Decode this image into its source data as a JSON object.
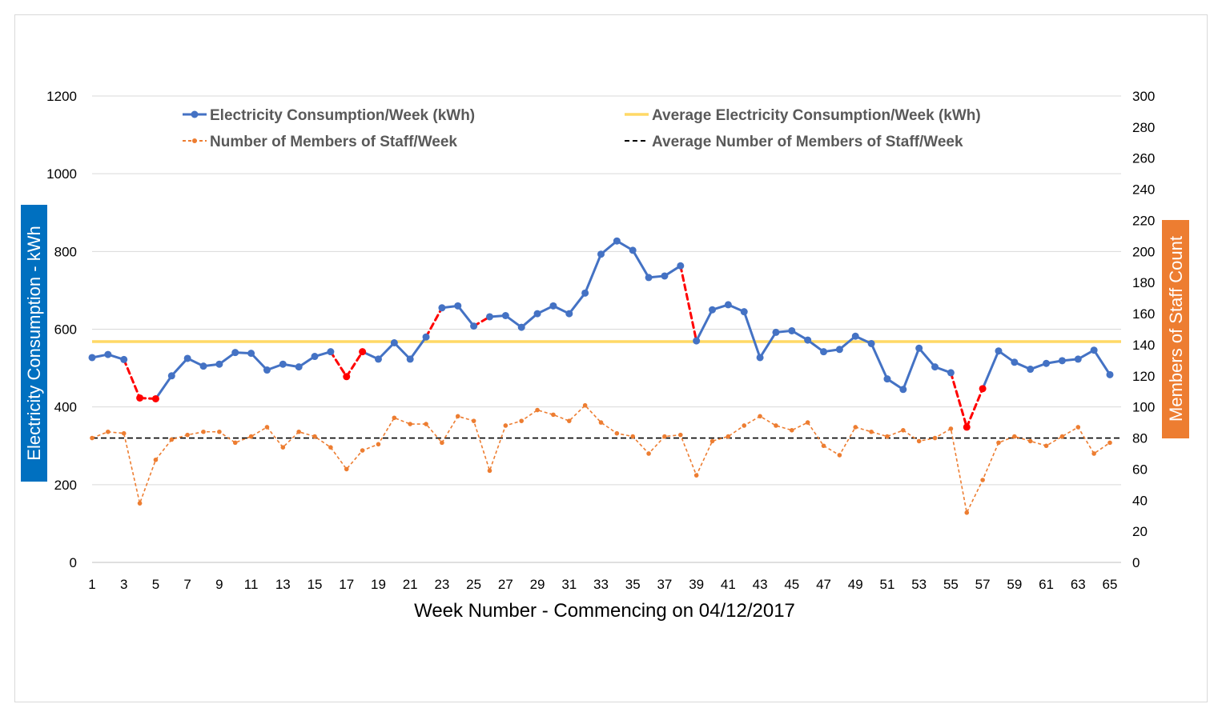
{
  "chart_data": {
    "type": "line",
    "title": "",
    "xlabel": "Week Number - Commencing on 04/12/2017",
    "ylabel_left": "Electricity Consumption - kWh",
    "ylabel_right": "Members of Staff Count",
    "ylim_left": [
      0,
      1200
    ],
    "ylim_right": [
      0,
      300
    ],
    "y_ticks_left": [
      0,
      200,
      400,
      600,
      800,
      1000,
      1200
    ],
    "y_ticks_right": [
      0,
      20,
      40,
      60,
      80,
      100,
      120,
      140,
      160,
      180,
      200,
      220,
      240,
      260,
      280,
      300
    ],
    "x": [
      1,
      2,
      3,
      4,
      5,
      6,
      7,
      8,
      9,
      10,
      11,
      12,
      13,
      14,
      15,
      16,
      17,
      18,
      19,
      20,
      21,
      22,
      23,
      24,
      25,
      26,
      27,
      28,
      29,
      30,
      31,
      32,
      33,
      34,
      35,
      36,
      37,
      38,
      39,
      40,
      41,
      42,
      43,
      44,
      45,
      46,
      47,
      48,
      49,
      50,
      51,
      52,
      53,
      54,
      55,
      56,
      57,
      58,
      59,
      60,
      61,
      62,
      63,
      64,
      65
    ],
    "x_tick_labels": [
      1,
      3,
      5,
      7,
      9,
      11,
      13,
      15,
      17,
      19,
      21,
      23,
      25,
      27,
      29,
      31,
      33,
      35,
      37,
      39,
      41,
      43,
      45,
      47,
      49,
      51,
      53,
      55,
      57,
      59,
      61,
      63,
      65
    ],
    "gridlines": true,
    "legend_position": "top",
    "series": [
      {
        "name": "Electricity Consumption/Week (kWh)",
        "axis": "left",
        "color": "#4472c4",
        "style": "solid-markers",
        "highlight_color": "#ff0000",
        "highlight_segments": [
          [
            3,
            4
          ],
          [
            4,
            5
          ],
          [
            16,
            17
          ],
          [
            17,
            18
          ],
          [
            22,
            23
          ],
          [
            25,
            26
          ],
          [
            38,
            39
          ],
          [
            55,
            56
          ],
          [
            56,
            57
          ]
        ],
        "values": [
          527,
          535,
          522,
          423,
          421,
          480,
          525,
          505,
          510,
          540,
          538,
          495,
          510,
          503,
          530,
          542,
          478,
          542,
          523,
          565,
          523,
          580,
          655,
          660,
          608,
          632,
          635,
          605,
          640,
          660,
          640,
          693,
          793,
          827,
          803,
          733,
          737,
          763,
          570,
          650,
          663,
          645,
          527,
          592,
          596,
          572,
          542,
          548,
          582,
          563,
          472,
          445,
          551,
          503,
          488,
          348,
          447,
          544,
          515,
          497,
          512,
          519,
          523,
          546,
          483
        ]
      },
      {
        "name": "Average Electricity Consumption/Week (kWh)",
        "axis": "left",
        "color": "#ffd966",
        "style": "flat",
        "value": 568
      },
      {
        "name": "Number of Members of Staff/Week",
        "axis": "right",
        "color": "#ed7d31",
        "style": "dashed-markers",
        "values": [
          80,
          84,
          83,
          38,
          66,
          79,
          82,
          84,
          84,
          77,
          81,
          87,
          74,
          84,
          81,
          74,
          60,
          72,
          76,
          93,
          89,
          89,
          77,
          94,
          91,
          59,
          88,
          91,
          98,
          95,
          91,
          101,
          90,
          83,
          81,
          70,
          81,
          82,
          56,
          78,
          81,
          88,
          94,
          88,
          85,
          90,
          75,
          69,
          87,
          84,
          81,
          85,
          78,
          80,
          86,
          32,
          53,
          77,
          81,
          78,
          75,
          81,
          87,
          70,
          77
        ]
      },
      {
        "name": "Average Number of Members of Staff/Week",
        "axis": "right",
        "color": "#000000",
        "style": "flat-dashed",
        "value": 80
      }
    ]
  }
}
